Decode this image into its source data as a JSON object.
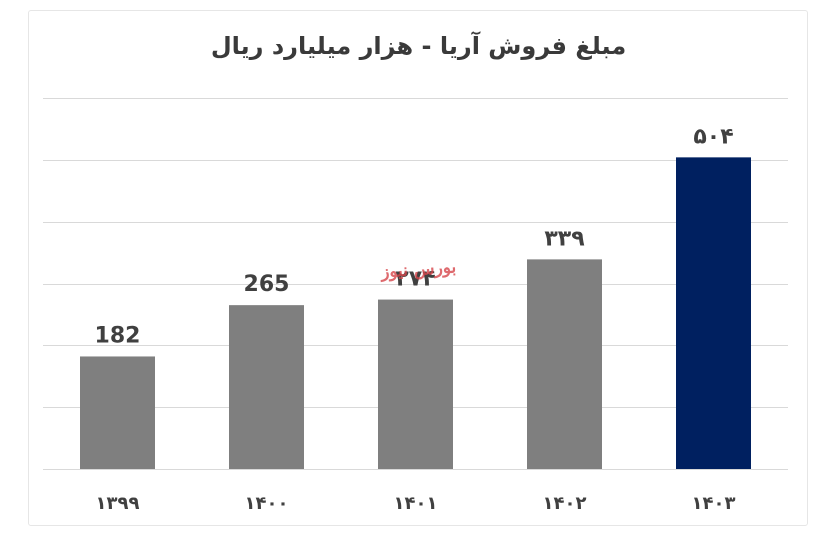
{
  "chart_data": {
    "type": "bar",
    "title": "مبلغ فروش آریا - هزار میلیارد ریال",
    "categories": [
      "۱۳۹۹",
      "۱۴۰۰",
      "۱۴۰۱",
      "۱۴۰۲",
      "۱۴۰۳"
    ],
    "values": [
      182,
      265,
      274,
      339,
      504
    ],
    "data_labels": [
      "182",
      "265",
      "۲۷۴",
      "۳۳۹",
      "۵۰۴"
    ],
    "bar_colors": [
      "#7f7f7f",
      "#7f7f7f",
      "#7f7f7f",
      "#7f7f7f",
      "#002060"
    ],
    "ylim": [
      0,
      600
    ],
    "grid": true,
    "gridline_color": "#d9d9d9",
    "xlabel": "",
    "ylabel": ""
  },
  "watermark": {
    "text": "بورس نیوز",
    "color": "#d6454a"
  }
}
